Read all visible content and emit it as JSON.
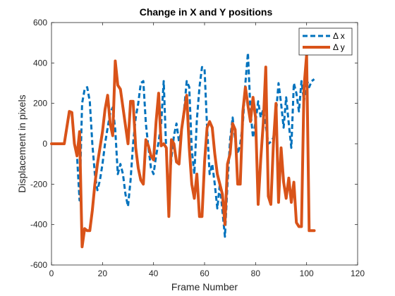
{
  "chart_data": {
    "type": "line",
    "title": "Change in X and Y positions",
    "xlabel": "Frame Number",
    "ylabel": "Displacement in pixels",
    "xlim": [
      0,
      120
    ],
    "ylim": [
      -600,
      600
    ],
    "xticks": [
      0,
      20,
      40,
      60,
      80,
      100,
      120
    ],
    "yticks": [
      -600,
      -400,
      -200,
      0,
      200,
      400,
      600
    ],
    "grid": false,
    "legend_position": "top-right",
    "series": [
      {
        "name": "Δ x",
        "color": "#0072BD",
        "style": "dashed",
        "points": [
          [
            0,
            0
          ],
          [
            5,
            0
          ],
          [
            7,
            150
          ],
          [
            8,
            155
          ],
          [
            9,
            0
          ],
          [
            10,
            -60
          ],
          [
            11,
            -280
          ],
          [
            12,
            200
          ],
          [
            13,
            270
          ],
          [
            14,
            280
          ],
          [
            15,
            210
          ],
          [
            16,
            0
          ],
          [
            17,
            -150
          ],
          [
            18,
            -230
          ],
          [
            19,
            -180
          ],
          [
            20,
            -100
          ],
          [
            21,
            0
          ],
          [
            22,
            80
          ],
          [
            23,
            150
          ],
          [
            24,
            180
          ],
          [
            25,
            70
          ],
          [
            26,
            -150
          ],
          [
            27,
            -100
          ],
          [
            28,
            -150
          ],
          [
            29,
            -250
          ],
          [
            30,
            -310
          ],
          [
            31,
            -180
          ],
          [
            32,
            0
          ],
          [
            33,
            130
          ],
          [
            34,
            200
          ],
          [
            35,
            300
          ],
          [
            36,
            310
          ],
          [
            37,
            100
          ],
          [
            38,
            -20
          ],
          [
            39,
            -120
          ],
          [
            40,
            -150
          ],
          [
            41,
            -60
          ],
          [
            42,
            10
          ],
          [
            43,
            100
          ],
          [
            44,
            310
          ],
          [
            45,
            -50
          ],
          [
            46,
            -250
          ],
          [
            47,
            -70
          ],
          [
            48,
            40
          ],
          [
            49,
            100
          ],
          [
            50,
            10
          ],
          [
            51,
            70
          ],
          [
            52,
            170
          ],
          [
            53,
            310
          ],
          [
            54,
            280
          ],
          [
            55,
            -30
          ],
          [
            56,
            -150
          ],
          [
            57,
            120
          ],
          [
            58,
            280
          ],
          [
            59,
            380
          ],
          [
            60,
            370
          ],
          [
            61,
            80
          ],
          [
            62,
            -150
          ],
          [
            63,
            -100
          ],
          [
            64,
            -200
          ],
          [
            65,
            -320
          ],
          [
            66,
            -200
          ],
          [
            67,
            -330
          ],
          [
            68,
            -460
          ],
          [
            69,
            -200
          ],
          [
            70,
            20
          ],
          [
            71,
            130
          ],
          [
            72,
            20
          ],
          [
            73,
            -50
          ],
          [
            74,
            0
          ],
          [
            75,
            100
          ],
          [
            76,
            300
          ],
          [
            77,
            450
          ],
          [
            78,
            160
          ],
          [
            79,
            30
          ],
          [
            80,
            110
          ],
          [
            81,
            210
          ],
          [
            82,
            130
          ],
          [
            83,
            170
          ],
          [
            84,
            90
          ],
          [
            85,
            0
          ],
          [
            86,
            10
          ],
          [
            87,
            30
          ],
          [
            88,
            150
          ],
          [
            89,
            300
          ],
          [
            90,
            200
          ],
          [
            91,
            80
          ],
          [
            92,
            230
          ],
          [
            93,
            100
          ],
          [
            94,
            -20
          ],
          [
            95,
            300
          ],
          [
            96,
            250
          ],
          [
            97,
            160
          ],
          [
            98,
            310
          ],
          [
            99,
            210
          ],
          [
            100,
            320
          ],
          [
            101,
            280
          ],
          [
            102,
            310
          ],
          [
            103,
            320
          ]
        ]
      },
      {
        "name": "Δ y",
        "color": "#D95319",
        "style": "solid",
        "points": [
          [
            0,
            0
          ],
          [
            5,
            0
          ],
          [
            7,
            160
          ],
          [
            8,
            155
          ],
          [
            9,
            0
          ],
          [
            10,
            -60
          ],
          [
            11,
            60
          ],
          [
            12,
            -510
          ],
          [
            13,
            -420
          ],
          [
            14,
            -430
          ],
          [
            15,
            -430
          ],
          [
            16,
            -330
          ],
          [
            17,
            -200
          ],
          [
            18,
            -100
          ],
          [
            19,
            -20
          ],
          [
            20,
            60
          ],
          [
            21,
            170
          ],
          [
            22,
            240
          ],
          [
            23,
            100
          ],
          [
            24,
            40
          ],
          [
            25,
            410
          ],
          [
            26,
            290
          ],
          [
            27,
            270
          ],
          [
            28,
            180
          ],
          [
            29,
            90
          ],
          [
            30,
            0
          ],
          [
            31,
            210
          ],
          [
            32,
            210
          ],
          [
            33,
            -20
          ],
          [
            34,
            -120
          ],
          [
            35,
            -180
          ],
          [
            36,
            -200
          ],
          [
            37,
            20
          ],
          [
            38,
            -10
          ],
          [
            39,
            -60
          ],
          [
            40,
            -80
          ],
          [
            41,
            110
          ],
          [
            42,
            250
          ],
          [
            43,
            -10
          ],
          [
            44,
            0
          ],
          [
            45,
            -20
          ],
          [
            46,
            -360
          ],
          [
            47,
            20
          ],
          [
            48,
            0
          ],
          [
            49,
            -90
          ],
          [
            50,
            -100
          ],
          [
            51,
            70
          ],
          [
            52,
            160
          ],
          [
            53,
            240
          ],
          [
            54,
            -20
          ],
          [
            55,
            -200
          ],
          [
            56,
            -270
          ],
          [
            57,
            -150
          ],
          [
            58,
            -360
          ],
          [
            59,
            -360
          ],
          [
            60,
            -90
          ],
          [
            61,
            80
          ],
          [
            62,
            110
          ],
          [
            63,
            80
          ],
          [
            64,
            -50
          ],
          [
            65,
            -150
          ],
          [
            66,
            -200
          ],
          [
            67,
            -250
          ],
          [
            68,
            -400
          ],
          [
            69,
            -100
          ],
          [
            70,
            -50
          ],
          [
            71,
            100
          ],
          [
            72,
            70
          ],
          [
            73,
            -200
          ],
          [
            74,
            -200
          ],
          [
            75,
            160
          ],
          [
            76,
            280
          ],
          [
            77,
            190
          ],
          [
            78,
            110
          ],
          [
            79,
            230
          ],
          [
            80,
            130
          ],
          [
            81,
            -300
          ],
          [
            82,
            -80
          ],
          [
            83,
            100
          ],
          [
            84,
            380
          ],
          [
            85,
            -260
          ],
          [
            86,
            -300
          ],
          [
            87,
            0
          ],
          [
            88,
            200
          ],
          [
            89,
            -290
          ],
          [
            90,
            -20
          ],
          [
            91,
            -190
          ],
          [
            92,
            -270
          ],
          [
            93,
            -170
          ],
          [
            94,
            -290
          ],
          [
            95,
            -190
          ],
          [
            96,
            -390
          ],
          [
            97,
            -410
          ],
          [
            98,
            -410
          ],
          [
            99,
            280
          ],
          [
            100,
            440
          ],
          [
            101,
            -430
          ],
          [
            102,
            -430
          ],
          [
            103,
            -430
          ]
        ]
      }
    ]
  }
}
